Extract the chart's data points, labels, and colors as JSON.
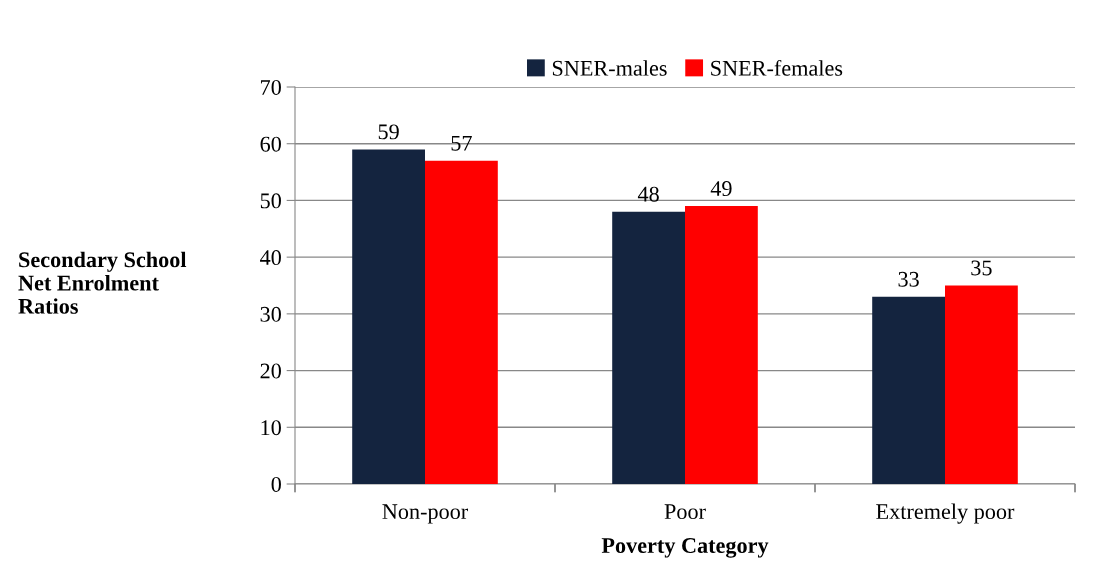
{
  "chart_data": {
    "type": "bar",
    "xlabel": "Poverty Category",
    "ylabel": "Secondary School\nNet Enrolment\nRatios",
    "categories": [
      "Non-poor",
      "Poor",
      "Extremely poor"
    ],
    "series": [
      {
        "name": "SNER-males",
        "color": "#14243f",
        "values": [
          59,
          48,
          33
        ]
      },
      {
        "name": "SNER-females",
        "color": "#ff0000",
        "values": [
          57,
          49,
          35
        ]
      }
    ],
    "ylim": [
      0,
      70
    ],
    "yticks": [
      0,
      10,
      20,
      30,
      40,
      50,
      60,
      70
    ],
    "grid": "y",
    "legend": "top",
    "data_labels": true
  }
}
